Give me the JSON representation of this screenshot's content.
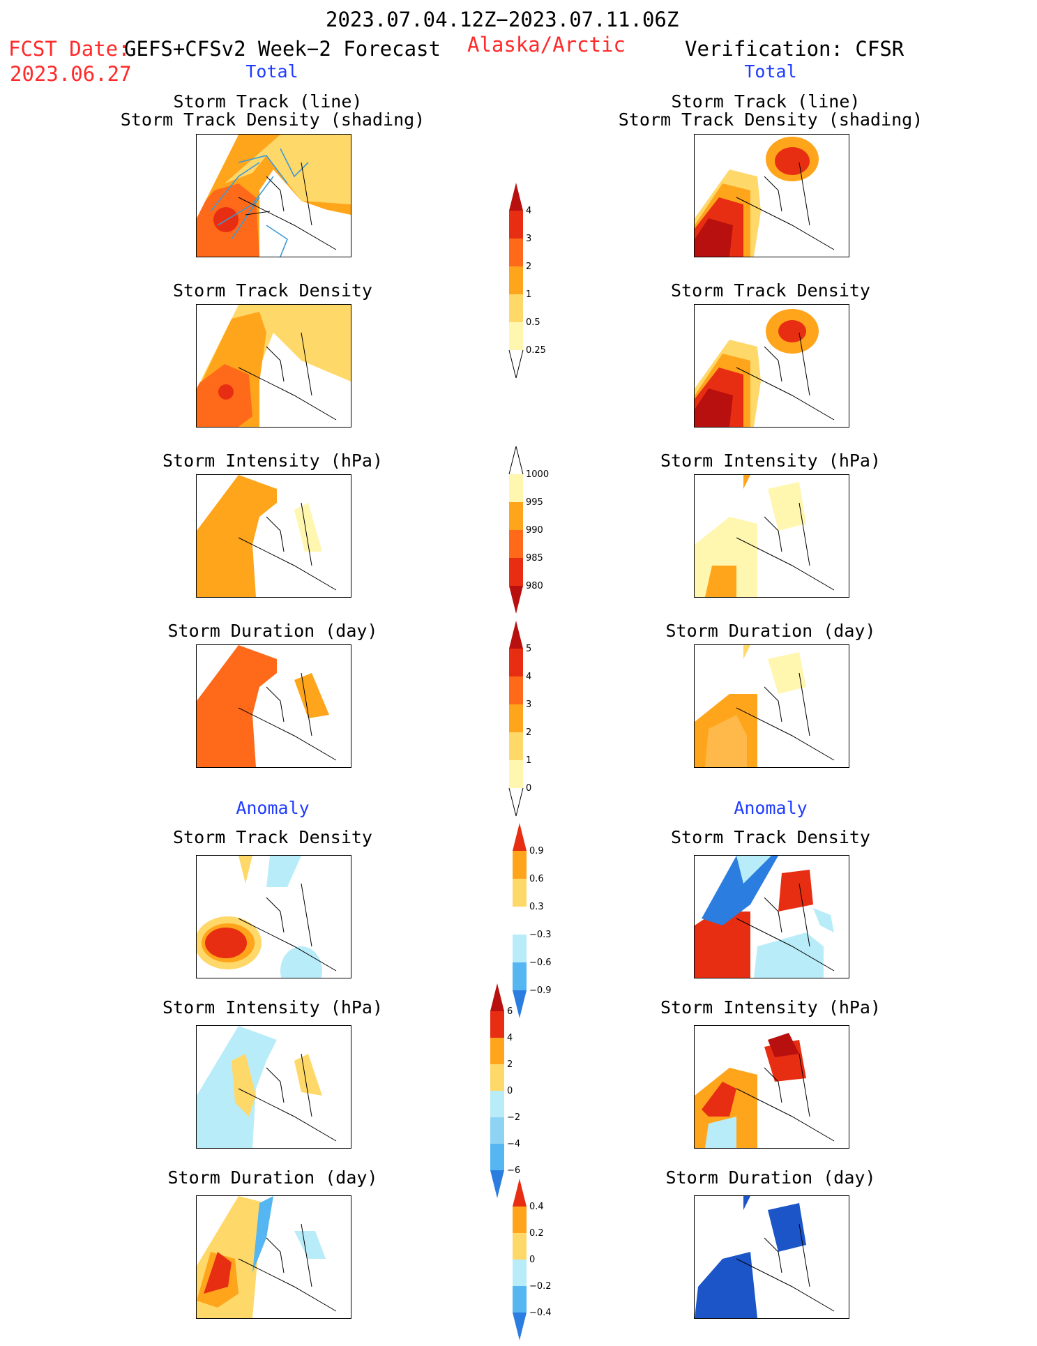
{
  "header": {
    "period": "2023.07.04.12Z−2023.07.11.06Z",
    "fcst_label": "FCST Date:",
    "fcst_model": "GEFS+CFSv2 Week−2 Forecast",
    "fcst_date": "2023.06.27",
    "region": "Alaska/Arctic",
    "verification": "Verification: CFSR"
  },
  "sections": {
    "total": "Total",
    "anomaly": "Anomaly"
  },
  "panel_titles": {
    "track_line": "Storm Track (line)",
    "track_shading": "Storm Track Density (shading)",
    "density": "Storm Track Density",
    "intensity": "Storm Intensity (hPa)",
    "duration": "Storm Duration (day)"
  },
  "colorbars": {
    "total_density": [
      "0.25",
      "0.5",
      "1",
      "2",
      "3",
      "4"
    ],
    "total_intensity": [
      "1000",
      "995",
      "990",
      "985",
      "980"
    ],
    "total_duration": [
      "0",
      "1",
      "2",
      "3",
      "4",
      "5"
    ],
    "anom_density": [
      "0.9",
      "0.6",
      "0.3",
      "−0.3",
      "−0.6",
      "−0.9"
    ],
    "anom_intensity": [
      "6",
      "4",
      "2",
      "0",
      "−2",
      "−4",
      "−6"
    ],
    "anom_duration": [
      "0.4",
      "0.2",
      "0",
      "−0.2",
      "−0.4"
    ]
  },
  "colors": {
    "pale_yellow": "#fff6b0",
    "yellow": "#ffd86a",
    "orange": "#ffa51c",
    "dark_orange": "#ff6a1a",
    "red": "#e82e12",
    "dark_red": "#b80f0f",
    "light_blue": "#b8ecf8",
    "mid_blue": "#55b6f2",
    "blue": "#2b7de0",
    "dark_blue": "#1b55c8",
    "title_red": "#ff2a2a",
    "section_blue": "#1f3bff"
  }
}
